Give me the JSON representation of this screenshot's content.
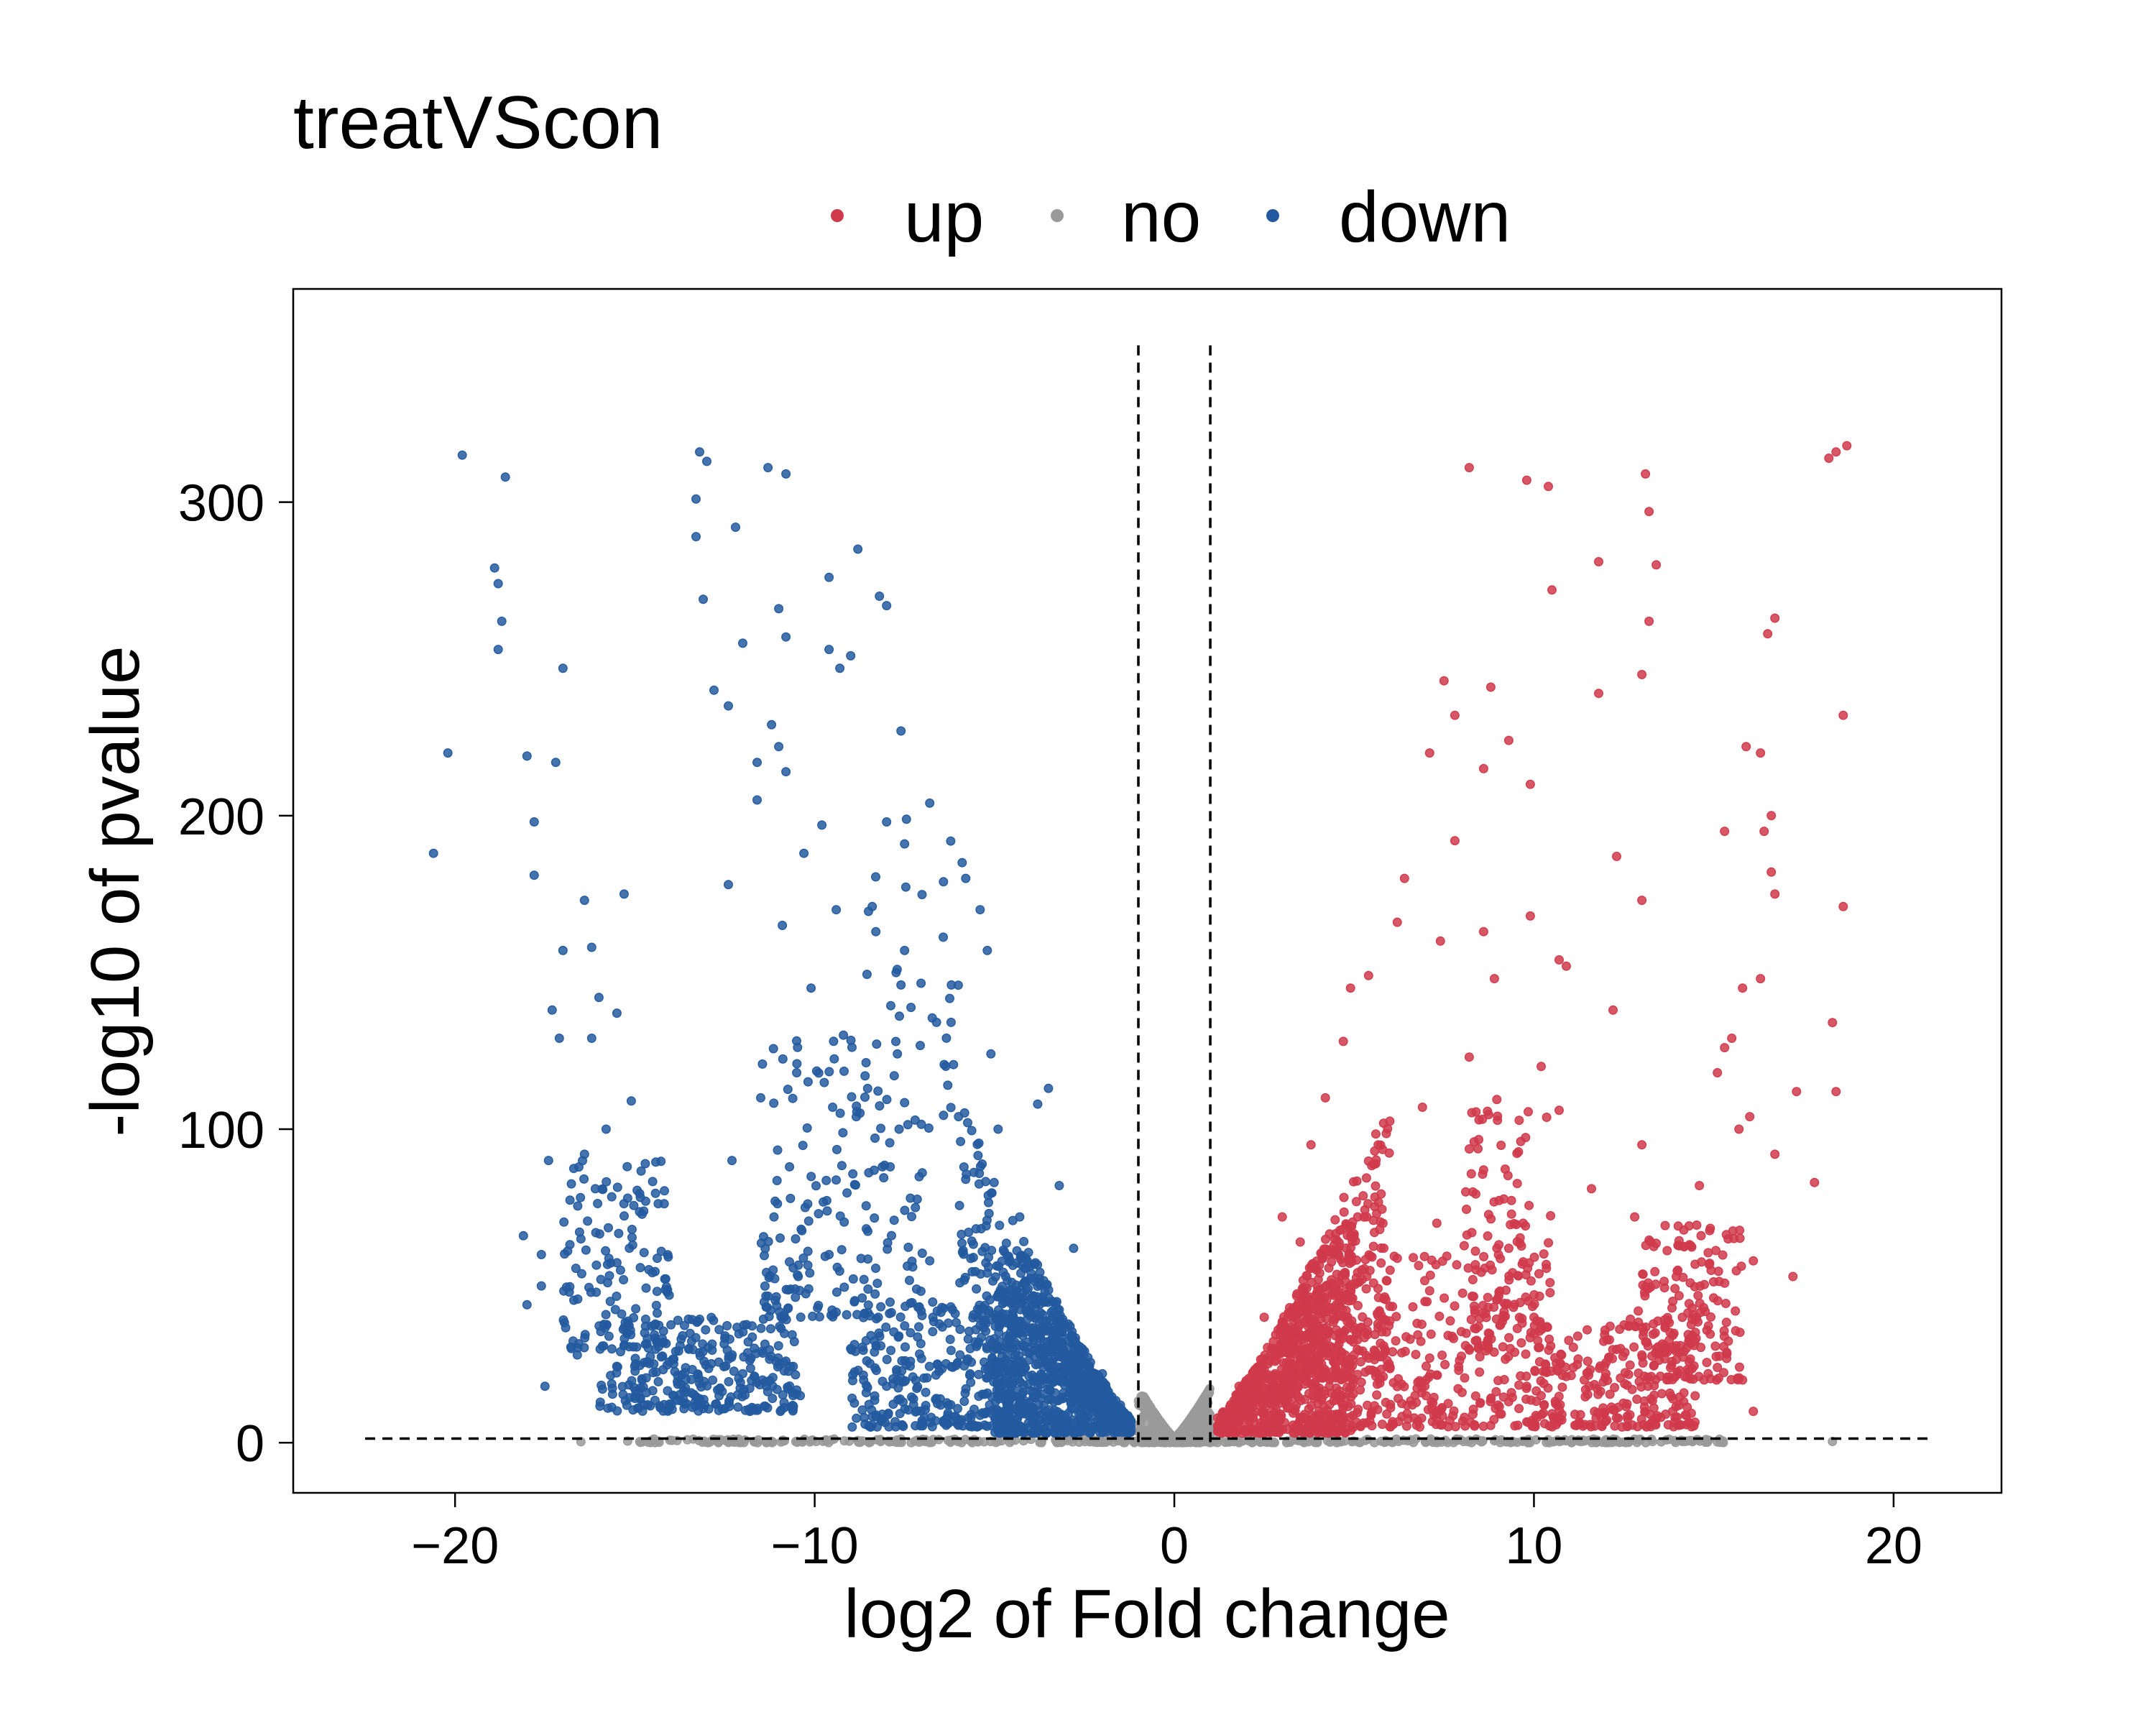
{
  "chart_data": {
    "type": "scatter",
    "title": "treatVScon",
    "xlabel": "log2 of Fold change",
    "ylabel": "-log10 of pvalue",
    "xlim": [
      -24.5,
      23
    ],
    "ylim": [
      -16,
      368
    ],
    "x_ticks": [
      "−20",
      "−10",
      "0",
      "10",
      "20"
    ],
    "x_tick_values": [
      -20,
      -10,
      0,
      10,
      20
    ],
    "y_ticks": [
      "0",
      "100",
      "200",
      "300"
    ],
    "y_tick_values": [
      0,
      100,
      200,
      300
    ],
    "grid": false,
    "legend": {
      "position": "top",
      "entries": [
        "up",
        "no",
        "down"
      ]
    },
    "colors": {
      "up": "#D03A4B",
      "no": "#9A9A9A",
      "down": "#235A9F"
    },
    "thresholds": {
      "log2fc": [
        -1,
        1
      ],
      "neg_log10_p": 1.3,
      "y_top": 350,
      "h_line_x": [
        -22.5,
        21
      ]
    },
    "series": [
      {
        "name": "up",
        "points": [
          [
            18.7,
            318
          ],
          [
            18.4,
            316
          ],
          [
            18.2,
            314
          ],
          [
            8.2,
            311
          ],
          [
            13.1,
            309
          ],
          [
            9.8,
            307
          ],
          [
            10.4,
            305
          ],
          [
            13.2,
            297
          ],
          [
            11.8,
            281
          ],
          [
            13.4,
            280
          ],
          [
            13.2,
            262
          ],
          [
            10.5,
            272
          ],
          [
            16.7,
            263
          ],
          [
            16.5,
            258
          ],
          [
            13.0,
            245
          ],
          [
            11.8,
            239
          ],
          [
            7.5,
            243
          ],
          [
            8.8,
            241
          ],
          [
            7.8,
            232
          ],
          [
            9.3,
            224
          ],
          [
            7.1,
            220
          ],
          [
            18.6,
            232
          ],
          [
            15.9,
            222
          ],
          [
            16.3,
            220
          ],
          [
            8.6,
            215
          ],
          [
            9.9,
            210
          ],
          [
            16.6,
            200
          ],
          [
            16.4,
            195
          ],
          [
            15.3,
            195
          ],
          [
            7.8,
            192
          ],
          [
            12.3,
            187
          ],
          [
            13.0,
            173
          ],
          [
            18.6,
            171
          ],
          [
            16.6,
            182
          ],
          [
            16.7,
            175
          ],
          [
            6.4,
            180
          ],
          [
            6.2,
            166
          ],
          [
            9.9,
            168
          ],
          [
            8.6,
            163
          ],
          [
            7.4,
            160
          ],
          [
            10.7,
            154
          ],
          [
            10.9,
            152
          ],
          [
            5.4,
            149
          ],
          [
            8.9,
            148
          ],
          [
            16.3,
            148
          ],
          [
            15.8,
            145
          ],
          [
            4.9,
            145
          ],
          [
            12.2,
            138
          ],
          [
            18.3,
            134
          ],
          [
            15.5,
            129
          ],
          [
            15.3,
            126
          ],
          [
            4.7,
            128
          ],
          [
            8.2,
            123
          ],
          [
            10.2,
            120
          ],
          [
            15.1,
            118
          ],
          [
            17.3,
            112
          ],
          [
            4.2,
            110
          ],
          [
            6.9,
            107
          ],
          [
            10.7,
            106
          ],
          [
            16.0,
            104
          ],
          [
            15.7,
            100
          ],
          [
            16.7,
            92
          ],
          [
            17.8,
            83
          ],
          [
            18.4,
            112
          ],
          [
            3.8,
            95
          ],
          [
            5.6,
            89
          ],
          [
            8.6,
            87
          ],
          [
            13.0,
            95
          ],
          [
            14.6,
            82
          ],
          [
            11.6,
            81
          ],
          [
            12.8,
            72
          ],
          [
            9.7,
            70
          ],
          [
            5.1,
            72
          ],
          [
            4.1,
            60
          ],
          [
            7.3,
            70
          ],
          [
            9.3,
            62
          ],
          [
            15.4,
            65
          ],
          [
            14.0,
            55
          ],
          [
            17.2,
            53
          ],
          [
            16.1,
            58
          ],
          [
            3.0,
            72
          ],
          [
            3.5,
            64
          ],
          [
            6.0,
            55
          ],
          [
            8.3,
            52
          ],
          [
            10.0,
            40
          ],
          [
            12.9,
            42
          ],
          [
            15.6,
            42
          ],
          [
            14.3,
            32
          ],
          [
            13.0,
            28
          ],
          [
            12.0,
            22
          ],
          [
            11.4,
            20
          ],
          [
            10.2,
            15
          ],
          [
            9.8,
            18
          ],
          [
            15.1,
            24
          ],
          [
            15.8,
            20
          ],
          [
            16.1,
            10
          ],
          [
            2.5,
            40
          ],
          [
            3.1,
            30
          ],
          [
            2.2,
            22
          ],
          [
            2.0,
            14
          ],
          [
            1.6,
            8
          ],
          [
            1.8,
            18
          ],
          [
            4.0,
            35
          ],
          [
            5.0,
            28
          ],
          [
            6.0,
            24
          ],
          [
            7.0,
            20
          ],
          [
            8.0,
            16
          ],
          [
            9.0,
            12
          ],
          [
            2.8,
            12
          ],
          [
            3.5,
            8
          ],
          [
            4.5,
            6
          ],
          [
            5.5,
            10
          ]
        ],
        "clusters": [
          {
            "x": [
              1.2,
              5
            ],
            "y": [
              3,
              70
            ],
            "n": 900
          },
          {
            "x": [
              3,
              6
            ],
            "y": [
              20,
              130
            ],
            "n": 260
          },
          {
            "x": [
              5,
              10
            ],
            "y": [
              5,
              60
            ],
            "n": 260
          },
          {
            "x": [
              8,
              10.5
            ],
            "y": [
              30,
              110
            ],
            "n": 120
          },
          {
            "x": [
              10,
              14.5
            ],
            "y": [
              5,
              40
            ],
            "n": 260
          },
          {
            "x": [
              13,
              15.8
            ],
            "y": [
              20,
              70
            ],
            "n": 160
          }
        ]
      },
      {
        "name": "no",
        "points": [
          [
            -16.5,
            0.3
          ],
          [
            -15.2,
            0.5
          ],
          [
            -14.8,
            0.2
          ],
          [
            14.2,
            0.4
          ],
          [
            14.8,
            0.5
          ],
          [
            15.1,
            0.2
          ],
          [
            18.3,
            0.4
          ],
          [
            -13.0,
            0.1
          ]
        ],
        "clusters": [
          {
            "x": [
              -15,
              15.5
            ],
            "y": [
              0,
              1.2
            ],
            "n": 400
          },
          {
            "x": [
              -1,
              1
            ],
            "y": [
              0,
              18
            ],
            "n": 500
          }
        ]
      },
      {
        "name": "down",
        "points": [
          [
            -19.8,
            315
          ],
          [
            -18.6,
            308
          ],
          [
            -13.2,
            316
          ],
          [
            -13.0,
            313
          ],
          [
            -11.3,
            311
          ],
          [
            -10.8,
            309
          ],
          [
            -13.3,
            301
          ],
          [
            -13.3,
            289
          ],
          [
            -12.2,
            292
          ],
          [
            -8.8,
            285
          ],
          [
            -18.9,
            279
          ],
          [
            -18.8,
            274
          ],
          [
            -9.6,
            276
          ],
          [
            -8.2,
            270
          ],
          [
            -8.0,
            267
          ],
          [
            -13.1,
            269
          ],
          [
            -11.0,
            266
          ],
          [
            -18.7,
            262
          ],
          [
            -10.8,
            257
          ],
          [
            -12.0,
            255
          ],
          [
            -9.6,
            253
          ],
          [
            -18.8,
            253
          ],
          [
            -9.3,
            247
          ],
          [
            -17.0,
            247
          ],
          [
            -9.0,
            251
          ],
          [
            -12.8,
            240
          ],
          [
            -12.4,
            235
          ],
          [
            -11.2,
            229
          ],
          [
            -20.2,
            220
          ],
          [
            -18.0,
            219
          ],
          [
            -17.2,
            217
          ],
          [
            -7.6,
            227
          ],
          [
            -11.0,
            222
          ],
          [
            -10.8,
            214
          ],
          [
            -11.6,
            217
          ],
          [
            -11.6,
            205
          ],
          [
            -7.5,
            191
          ],
          [
            -17.8,
            198
          ],
          [
            -20.6,
            188
          ],
          [
            -10.3,
            188
          ],
          [
            -9.8,
            197
          ],
          [
            -8.0,
            198
          ],
          [
            -6.8,
            204
          ],
          [
            -5.9,
            185
          ],
          [
            -12.4,
            178
          ],
          [
            -15.3,
            175
          ],
          [
            -17.8,
            181
          ],
          [
            -9.4,
            170
          ],
          [
            -8.4,
            171
          ],
          [
            -5.8,
            180
          ],
          [
            -5.4,
            170
          ],
          [
            -16.4,
            173
          ],
          [
            -16.2,
            158
          ],
          [
            -17.0,
            157
          ],
          [
            -10.9,
            165
          ],
          [
            -8.3,
            163
          ],
          [
            -7.5,
            157
          ],
          [
            -5.2,
            157
          ],
          [
            -16.0,
            142
          ],
          [
            -15.5,
            137
          ],
          [
            -17.3,
            138
          ],
          [
            -10.1,
            145
          ],
          [
            -7.6,
            146
          ],
          [
            -6.2,
            146
          ],
          [
            -16.2,
            129
          ],
          [
            -17.1,
            129
          ],
          [
            -9.2,
            130
          ],
          [
            -7.7,
            124
          ],
          [
            -5.1,
            124
          ],
          [
            -10.5,
            118
          ],
          [
            -8.6,
            117
          ],
          [
            -6.3,
            114
          ],
          [
            -3.5,
            113
          ],
          [
            -15.1,
            109
          ],
          [
            -3.8,
            108
          ],
          [
            -17.4,
            90
          ],
          [
            -16.4,
            92
          ],
          [
            -15.8,
            100
          ],
          [
            -9.5,
            107
          ],
          [
            -6.0,
            104
          ],
          [
            -4.9,
            100
          ],
          [
            -11.5,
            110
          ],
          [
            -16.1,
            81
          ],
          [
            -15.2,
            78
          ],
          [
            -14.7,
            77
          ],
          [
            -12.3,
            90
          ],
          [
            -10.7,
            88
          ],
          [
            -7.9,
            88
          ],
          [
            -5.8,
            84
          ],
          [
            -3.2,
            82
          ],
          [
            -18.1,
            66
          ],
          [
            -17.6,
            60
          ],
          [
            -16.5,
            65
          ],
          [
            -11.1,
            77
          ],
          [
            -7.2,
            75
          ],
          [
            -4.3,
            72
          ],
          [
            -17.6,
            50
          ],
          [
            -18.0,
            44
          ],
          [
            -15.4,
            55
          ],
          [
            -14.1,
            48
          ],
          [
            -9.6,
            60
          ],
          [
            -6.8,
            58
          ],
          [
            -2.8,
            62
          ],
          [
            -17.5,
            18
          ],
          [
            -16.6,
            28
          ],
          [
            -15.2,
            38
          ],
          [
            -13.5,
            30
          ],
          [
            -12.0,
            22
          ],
          [
            -10.8,
            26
          ],
          [
            -9.0,
            30
          ],
          [
            -8.0,
            18
          ],
          [
            -6.5,
            12
          ],
          [
            -4.5,
            20
          ],
          [
            -3.0,
            30
          ],
          [
            -2.0,
            22
          ],
          [
            -1.5,
            12
          ],
          [
            -14.8,
            20
          ],
          [
            -13.2,
            14
          ],
          [
            -11.8,
            10
          ],
          [
            -10.4,
            15
          ]
        ],
        "clusters": [
          {
            "x": [
              -5,
              -1.2
            ],
            "y": [
              3,
              60
            ],
            "n": 900
          },
          {
            "x": [
              -9,
              -4
            ],
            "y": [
              5,
              45
            ],
            "n": 320
          },
          {
            "x": [
              -6,
              -3
            ],
            "y": [
              30,
              110
            ],
            "n": 160
          },
          {
            "x": [
              -11.5,
              -7
            ],
            "y": [
              40,
              130
            ],
            "n": 170
          },
          {
            "x": [
              -16,
              -10.5
            ],
            "y": [
              10,
              40
            ],
            "n": 300
          },
          {
            "x": [
              -17,
              -14
            ],
            "y": [
              30,
              90
            ],
            "n": 130
          },
          {
            "x": [
              -9,
              -5
            ],
            "y": [
              100,
              200
            ],
            "n": 60
          }
        ]
      }
    ]
  }
}
